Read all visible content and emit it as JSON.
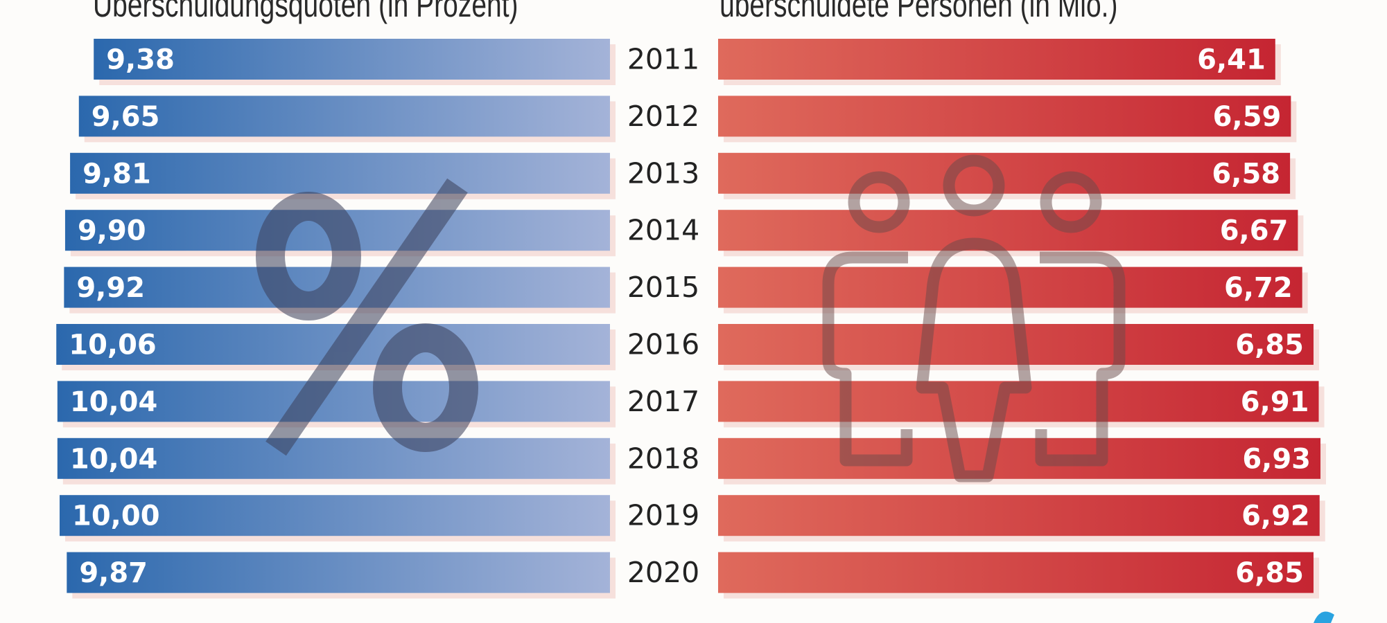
{
  "chart_data": [
    {
      "type": "bar",
      "orientation": "horizontal",
      "title": "Überschuldungsquoten (in Prozent)",
      "categories": [
        "2011",
        "2012",
        "2013",
        "2014",
        "2015",
        "2016",
        "2017",
        "2018",
        "2019",
        "2020"
      ],
      "values": [
        9.38,
        9.65,
        9.81,
        9.9,
        9.92,
        10.06,
        10.04,
        10.04,
        10.0,
        9.87
      ],
      "labels": [
        "9,38",
        "9,65",
        "9,81",
        "9,90",
        "9,92",
        "10,06",
        "10,04",
        "10,04",
        "10,00",
        "9,87"
      ],
      "color": "#2f6fb0",
      "watermark_icon": "percent-icon"
    },
    {
      "type": "bar",
      "orientation": "horizontal",
      "title": "überschuldete Personen (in Mio.)",
      "categories": [
        "2011",
        "2012",
        "2013",
        "2014",
        "2015",
        "2016",
        "2017",
        "2018",
        "2019",
        "2020"
      ],
      "values": [
        6.41,
        6.59,
        6.58,
        6.67,
        6.72,
        6.85,
        6.91,
        6.93,
        6.92,
        6.85
      ],
      "labels": [
        "6,41",
        "6,59",
        "6,58",
        "6,67",
        "6,72",
        "6,85",
        "6,91",
        "6,93",
        "6,92",
        "6,85"
      ],
      "color": "#c92a33",
      "watermark_icon": "people-icon"
    }
  ]
}
